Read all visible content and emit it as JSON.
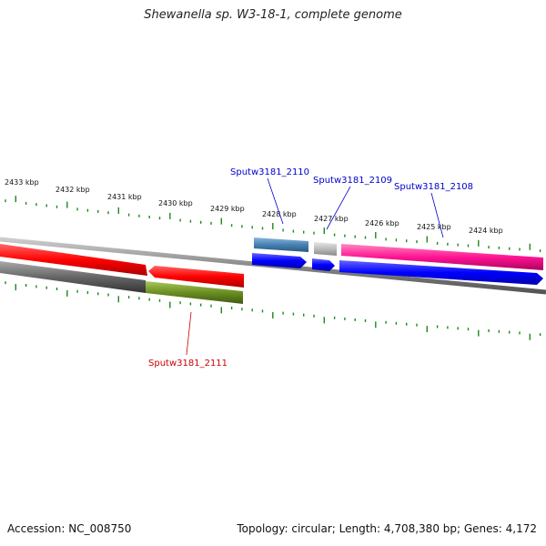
{
  "title": "Shewanella sp. W3-18-1, complete genome",
  "footer": {
    "accession": "Accession: NC_008750",
    "summary": "Topology: circular; Length: 4,708,380 bp; Genes: 4,172"
  },
  "scale_labels": [
    "2433 kbp",
    "2432 kbp",
    "2431 kbp",
    "2430 kbp",
    "2429 kbp",
    "2428 kbp",
    "2427 kbp",
    "2426 kbp",
    "2425 kbp",
    "2424 kbp"
  ],
  "gene_labels": {
    "sputw3181_2110": "Sputw3181_2110",
    "sputw3181_2109": "Sputw3181_2109",
    "sputw3181_2108": "Sputw3181_2108",
    "sputw3181_2111": "Sputw3181_2111"
  },
  "colors": {
    "tick_green": "#1a8a1a",
    "label_blue": "#0000cc",
    "label_red": "#cc0000",
    "red_feature": "#ff0000",
    "blue_feature": "#0000ff",
    "magenta_feature": "#ff1493",
    "steelblue_feature": "#4682b4",
    "olive_feature": "#6b8e23",
    "gray_feature": "#777777"
  }
}
